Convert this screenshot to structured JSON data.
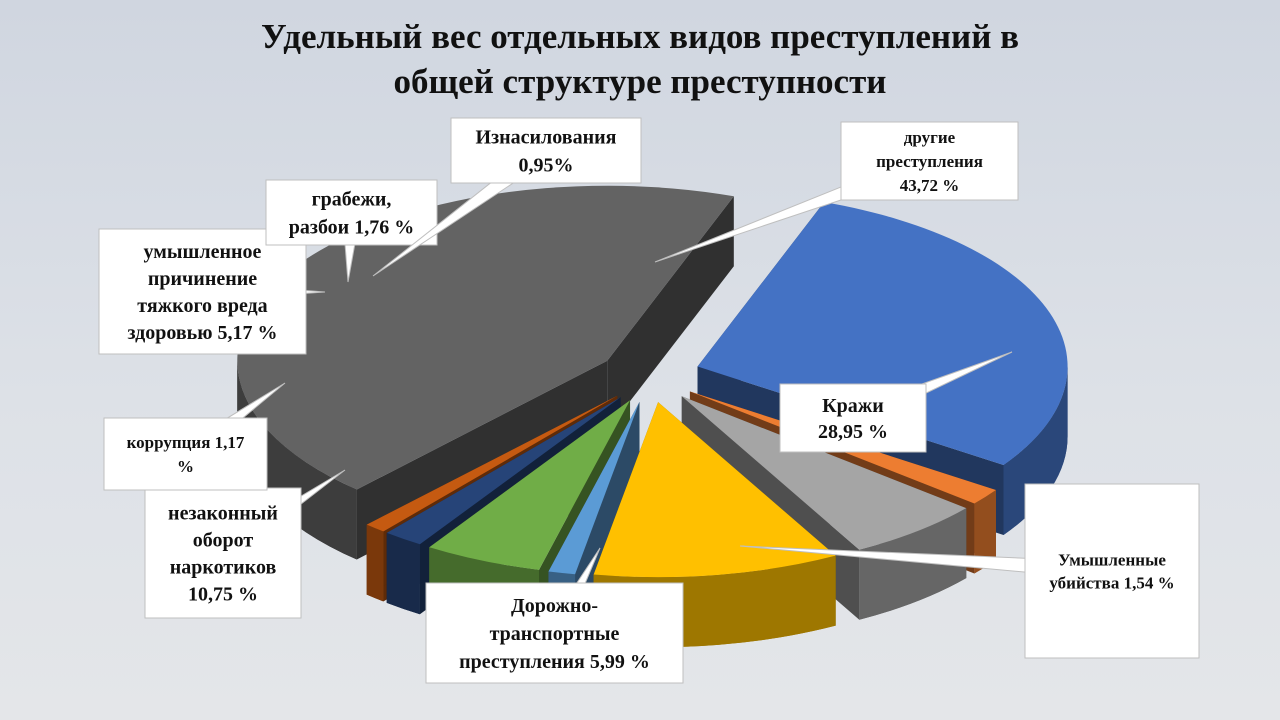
{
  "chart_data": {
    "type": "pie",
    "style": "3d-exploded",
    "title": "Удельный вес отдельных видов преступлений в общей структуре преступности",
    "title_lines": [
      "Удельный вес отдельных видов преступлений в",
      "общей структуре преступности"
    ],
    "slices": [
      {
        "id": "krazhi",
        "label_lines": [
          "Кражи",
          "28,95 %"
        ],
        "value": 28.95,
        "color": "#4472c4"
      },
      {
        "id": "ubiystva",
        "label_lines": [
          "Умышленные",
          "убийства 1,54 %"
        ],
        "value": 1.54,
        "color": "#ed7d31"
      },
      {
        "id": "dtp",
        "label_lines": [
          "Дорожно-",
          "транспортные",
          "преступления 5,99 %"
        ],
        "value": 5.99,
        "color": "#a5a5a5"
      },
      {
        "id": "narkotiki",
        "label_lines": [
          "незаконный",
          "оборот",
          "наркотиков",
          "10,75 %"
        ],
        "value": 10.75,
        "color": "#ffc000"
      },
      {
        "id": "korrupciya",
        "label_lines": [
          "коррупция  1,17",
          "%"
        ],
        "value": 1.17,
        "color": "#5b9bd5"
      },
      {
        "id": "vred",
        "label_lines": [
          "умышленное",
          "причинение",
          "тяжкого вреда",
          "здоровью 5,17 %"
        ],
        "value": 5.17,
        "color": "#70ad47"
      },
      {
        "id": "grabezhi",
        "label_lines": [
          "грабежи,",
          "разбои 1,76 %"
        ],
        "value": 1.76,
        "color": "#264478"
      },
      {
        "id": "iznasilovaniya",
        "label_lines": [
          "Изнасилования",
          "0,95%"
        ],
        "value": 0.95,
        "color": "#c55a11"
      },
      {
        "id": "drugie",
        "label_lines": [
          "другие",
          "преступления",
          "43,72 %"
        ],
        "value": 43.72,
        "color": "#636363"
      }
    ],
    "legend": "none",
    "data_labels": "callouts"
  }
}
